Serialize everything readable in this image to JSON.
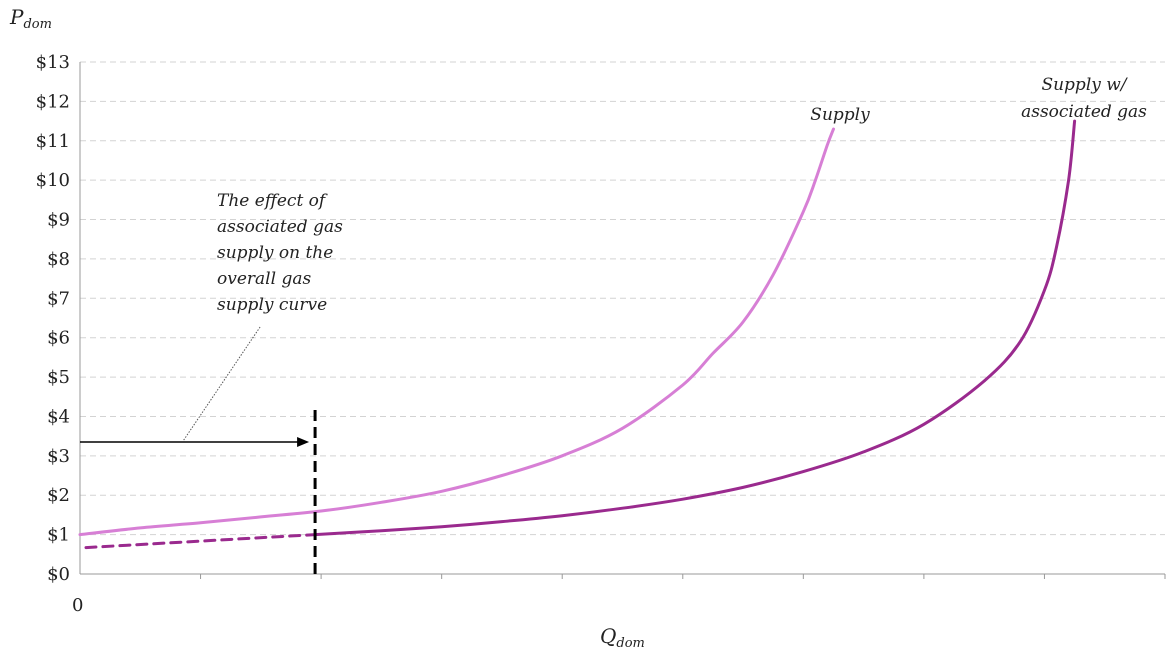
{
  "chart_data": {
    "type": "line",
    "y_axis": {
      "title_main": "P",
      "title_sub": "dom",
      "ticks": [
        "$0",
        "$1",
        "$2",
        "$3",
        "$4",
        "$5",
        "$6",
        "$7",
        "$8",
        "$9",
        "$10",
        "$11",
        "$12",
        "$13"
      ],
      "ylim": [
        0,
        13
      ],
      "grid": "dashed"
    },
    "x_axis": {
      "title_main": "Q",
      "title_sub": "dom",
      "origin_label": "0",
      "xlim": [
        0,
        9
      ],
      "minor_ticks": [
        1,
        2,
        3,
        4,
        5,
        6,
        7,
        8,
        9
      ]
    },
    "series": [
      {
        "name": "Supply",
        "color": "#d77fd5",
        "style": "solid",
        "x": [
          0,
          0.5,
          1,
          1.5,
          2,
          2.5,
          3,
          3.5,
          4,
          4.5,
          5,
          5.25,
          5.5,
          5.75,
          6,
          6.1,
          6.2,
          6.25
        ],
        "y": [
          1.0,
          1.17,
          1.3,
          1.45,
          1.6,
          1.82,
          2.1,
          2.5,
          3.0,
          3.7,
          4.8,
          5.6,
          6.4,
          7.6,
          9.2,
          10.0,
          10.9,
          11.3
        ]
      },
      {
        "name": "Supply w/ associated gas",
        "color": "#9a2a8e",
        "style": "solid",
        "x": [
          1.95,
          2.5,
          3,
          3.5,
          4,
          4.5,
          5,
          5.5,
          6,
          6.5,
          7,
          7.5,
          7.8,
          8.0,
          8.1,
          8.2,
          8.25
        ],
        "y": [
          1.0,
          1.1,
          1.2,
          1.33,
          1.48,
          1.67,
          1.9,
          2.2,
          2.6,
          3.1,
          3.8,
          4.9,
          5.9,
          7.2,
          8.3,
          10.0,
          11.5
        ]
      },
      {
        "color": "#9a2a8e",
        "style": "dashed",
        "x": [
          0.05,
          1.95
        ],
        "y": [
          0.67,
          1.0
        ]
      }
    ],
    "guides": {
      "vertical_dashed_line": {
        "x": 1.95,
        "y_from": 0,
        "y_to": 4.2
      },
      "arrow": {
        "x_from": 0,
        "x_to": 1.95,
        "y": 3.35
      },
      "leader_from": {
        "x": 0.86,
        "y": 3.4
      },
      "leader_to": {
        "x": 1.5,
        "y": 6.3
      }
    },
    "labels": {
      "supply": "Supply",
      "supply_assoc_line1": "Supply w/",
      "supply_assoc_line2": "associated gas"
    },
    "annotation": {
      "lines": [
        "The effect of",
        "associated gas",
        "supply on the",
        "overall gas",
        "supply curve"
      ]
    }
  }
}
